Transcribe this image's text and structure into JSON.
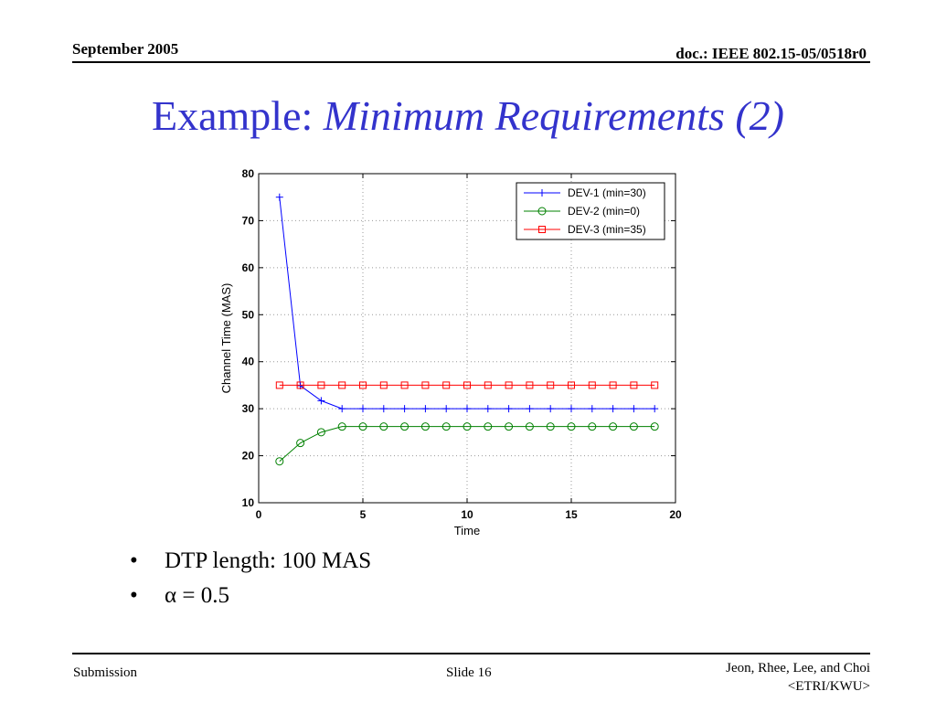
{
  "header": {
    "date": "September 2005",
    "doc_id": "doc.: IEEE 802.15-05/0518r0"
  },
  "slide": {
    "title_plain": "Example: ",
    "title_italic": "Minimum Requirements (2)"
  },
  "bullets": [
    {
      "symbol": "•",
      "text": "DTP length: 100 MAS"
    },
    {
      "symbol": "•",
      "text": "α = 0.5"
    }
  ],
  "footer": {
    "left": "Submission",
    "center": "Slide 16",
    "right_line1": "Jeon, Rhee, Lee, and Choi",
    "right_line2": "<ETRI/KWU>"
  },
  "chart_data": {
    "type": "line",
    "xlabel": "Time",
    "ylabel": "Channel Time (MAS)",
    "xlim": [
      0,
      20
    ],
    "ylim": [
      10,
      80
    ],
    "xticks": [
      0,
      5,
      10,
      15,
      20
    ],
    "yticks": [
      10,
      20,
      30,
      40,
      50,
      60,
      70,
      80
    ],
    "grid": true,
    "legend_position": "top-right",
    "x": [
      1,
      2,
      3,
      4,
      5,
      6,
      7,
      8,
      9,
      10,
      11,
      12,
      13,
      14,
      15,
      16,
      17,
      18,
      19
    ],
    "series": [
      {
        "name": "DEV-1 (min=30)",
        "color": "#0000ff",
        "marker": "plus",
        "values": [
          75,
          34.9,
          31.7,
          30,
          30,
          30,
          30,
          30,
          30,
          30,
          30,
          30,
          30,
          30,
          30,
          30,
          30,
          30,
          30
        ]
      },
      {
        "name": "DEV-2 (min=0)",
        "color": "#008000",
        "marker": "circle",
        "values": [
          18.8,
          22.7,
          25,
          26.2,
          26.2,
          26.2,
          26.2,
          26.2,
          26.2,
          26.2,
          26.2,
          26.2,
          26.2,
          26.2,
          26.2,
          26.2,
          26.2,
          26.2,
          26.2
        ]
      },
      {
        "name": "DEV-3 (min=35)",
        "color": "#ff0000",
        "marker": "square",
        "values": [
          35,
          35,
          35,
          35,
          35,
          35,
          35,
          35,
          35,
          35,
          35,
          35,
          35,
          35,
          35,
          35,
          35,
          35,
          35
        ]
      }
    ]
  }
}
